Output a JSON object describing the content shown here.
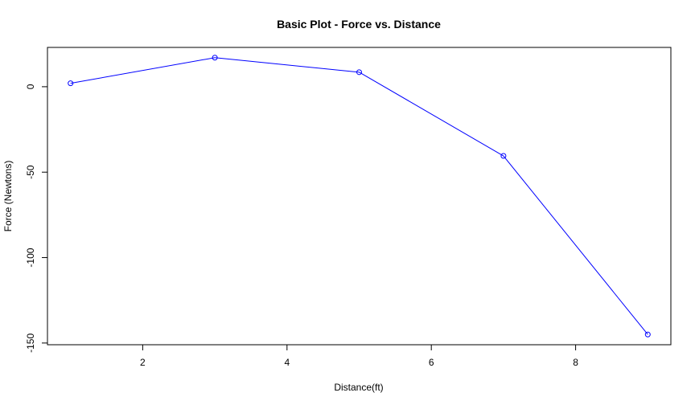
{
  "chart_data": {
    "type": "line",
    "title": "Basic Plot - Force vs. Distance",
    "xlabel": "Distance(ft)",
    "ylabel": "Force (Newtons)",
    "x": [
      1,
      3,
      5,
      7,
      9
    ],
    "series": [
      {
        "values": [
          2,
          17,
          8.5,
          -40.5,
          -145
        ]
      }
    ],
    "xlim": [
      0.68,
      9.32
    ],
    "ylim": [
      -151,
      23
    ],
    "xticks": [
      2,
      4,
      6,
      8
    ],
    "yticks": [
      0,
      -50,
      -100,
      -150
    ],
    "xtick_labels": [
      "2",
      "4",
      "6",
      "8"
    ],
    "ytick_labels": [
      "0",
      "-50",
      "-100",
      "-150"
    ],
    "grid": false,
    "legend": "none",
    "line_color": "#0000ff",
    "marker": "open-circle"
  }
}
